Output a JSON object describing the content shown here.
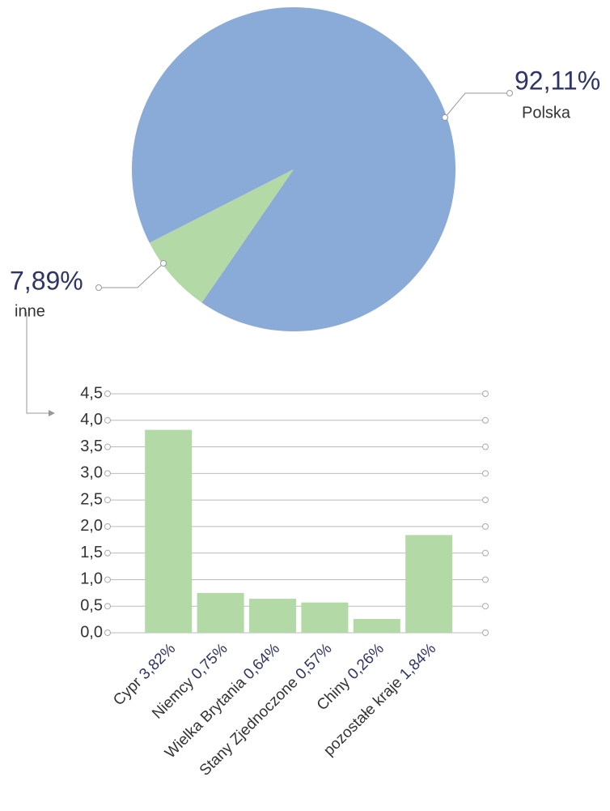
{
  "chart_data": [
    {
      "type": "pie",
      "categories": [
        "Polska",
        "inne"
      ],
      "values": [
        92.11,
        7.89
      ],
      "value_labels": [
        "92,11%",
        "7,89%"
      ],
      "colors": [
        "#8aaad8",
        "#b3d9a7"
      ]
    },
    {
      "type": "bar",
      "categories": [
        "Cypr",
        "Niemcy",
        "Wielka Brytania",
        "Stany Zjednoczone",
        "Chiny",
        "pozostałe kraje"
      ],
      "values": [
        3.82,
        0.75,
        0.64,
        0.57,
        0.26,
        1.84
      ],
      "value_labels": [
        "3,82%",
        "0,75%",
        "0,64%",
        "0,57%",
        "0,26%",
        "1,84%"
      ],
      "color": "#b3d9a7",
      "ylim": [
        0,
        4.5
      ],
      "yticks": [
        {
          "value": 0,
          "label": "0,0"
        },
        {
          "value": 0.5,
          "label": "0,5"
        },
        {
          "value": 1,
          "label": "1,0"
        },
        {
          "value": 1.5,
          "label": "1,5"
        },
        {
          "value": 2,
          "label": "2,0"
        },
        {
          "value": 2.5,
          "label": "2,5"
        },
        {
          "value": 3,
          "label": "3,0"
        },
        {
          "value": 3.5,
          "label": "3,5"
        },
        {
          "value": 4,
          "label": "4,0"
        },
        {
          "value": 4.5,
          "label": "4,5"
        }
      ],
      "grid": true
    }
  ]
}
